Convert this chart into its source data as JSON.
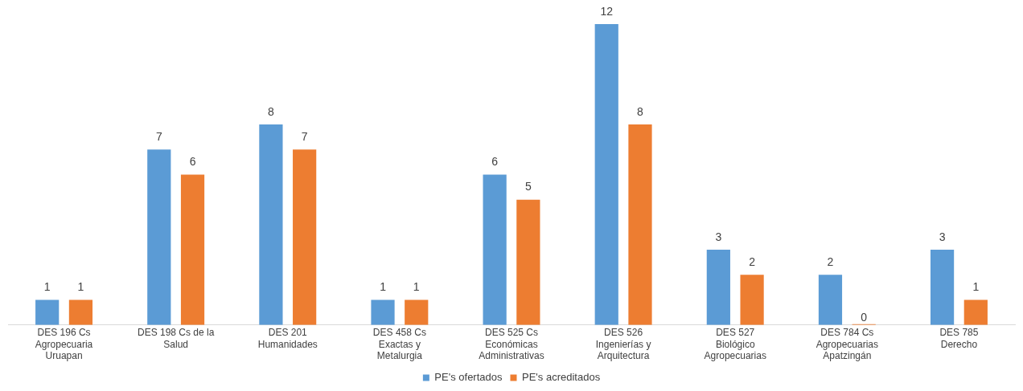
{
  "chart_data": {
    "type": "bar",
    "categories": [
      "DES 196 Cs\nAgropecuaria\nUruapan",
      "DES 198 Cs de la\nSalud",
      "DES 201\nHumanidades",
      "DES 458 Cs\nExactas y\nMetalurgia",
      "DES 525 Cs\nEconómicas\nAdministrativas",
      "DES 526\nIngenierías y\nArquitectura",
      "DES 527\nBiológico\nAgropecuarias",
      "DES 784 Cs\nAgropecuarias\nApatzingán",
      "DES 785\nDerecho"
    ],
    "series": [
      {
        "name": "PE's ofertados",
        "color": "#5b9bd5",
        "values": [
          1,
          7,
          8,
          1,
          6,
          12,
          3,
          2,
          3
        ]
      },
      {
        "name": "PE's acreditados",
        "color": "#ed7d31",
        "values": [
          1,
          6,
          7,
          1,
          5,
          8,
          2,
          0,
          1
        ]
      }
    ],
    "data_labels": true,
    "legend": "bottom",
    "grid": false
  }
}
